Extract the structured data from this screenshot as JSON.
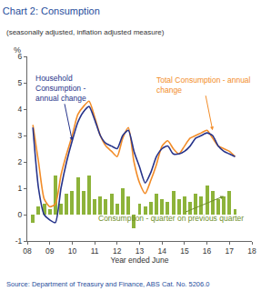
{
  "chart_data": {
    "type": "bar",
    "title": "Chart 2: Consumption",
    "subtitle": "(seasonally adjusted, inflation adjusted measure)",
    "y_label": "%",
    "x_label": "Year ended June",
    "source": "Source: Department of Treasury and Finance, ABS Cat. No. 5206.0",
    "x": [
      2008.25,
      2008.5,
      2008.75,
      2009.0,
      2009.25,
      2009.5,
      2009.75,
      2010.0,
      2010.25,
      2010.5,
      2010.75,
      2011.0,
      2011.25,
      2011.5,
      2011.75,
      2012.0,
      2012.25,
      2012.5,
      2012.75,
      2013.0,
      2013.25,
      2013.5,
      2013.75,
      2014.0,
      2014.25,
      2014.5,
      2014.75,
      2015.0,
      2015.25,
      2015.5,
      2015.75,
      2016.0,
      2016.25,
      2016.5,
      2016.75,
      2017.0,
      2017.25
    ],
    "series": [
      {
        "name": "Consumption - quarter on previous quarter",
        "type": "bar",
        "color": "#8db33a",
        "values": [
          -0.3,
          0.3,
          0.4,
          0.2,
          1.5,
          0.4,
          0.8,
          0.9,
          1.4,
          0.9,
          1.5,
          0.6,
          0.7,
          0.6,
          0.8,
          0.4,
          1.0,
          0.7,
          -0.5,
          0.4,
          0.3,
          0.5,
          0.8,
          0.6,
          0.5,
          0.9,
          0.6,
          0.7,
          0.5,
          0.8,
          0.7,
          1.1,
          0.9,
          0.6,
          0.7,
          0.9,
          0.2
        ]
      },
      {
        "name": "Total Consumption - annual change",
        "type": "line",
        "color": "#f28c28",
        "values": [
          3.4,
          2.0,
          0.6,
          0.3,
          0.4,
          1.5,
          2.3,
          3.0,
          3.8,
          4.1,
          4.3,
          3.7,
          3.0,
          2.6,
          2.4,
          2.2,
          2.9,
          3.3,
          2.0,
          1.2,
          0.8,
          1.3,
          1.9,
          2.6,
          2.8,
          2.5,
          2.3,
          2.6,
          2.9,
          3.0,
          3.1,
          3.2,
          2.9,
          2.6,
          2.5,
          2.4,
          2.2
        ]
      },
      {
        "name": "Household Consumption - annual change",
        "type": "line",
        "color": "#27348b",
        "values": [
          3.3,
          1.0,
          0.0,
          -0.2,
          -0.3,
          1.0,
          2.0,
          2.8,
          3.5,
          3.9,
          4.1,
          3.6,
          3.0,
          2.7,
          2.6,
          2.5,
          3.0,
          3.2,
          2.4,
          1.8,
          1.2,
          1.6,
          2.2,
          2.5,
          2.6,
          2.3,
          2.3,
          2.4,
          2.6,
          2.9,
          3.0,
          3.1,
          3.0,
          2.6,
          2.4,
          2.3,
          2.2
        ]
      }
    ],
    "annotations": [
      {
        "text": "Household\nConsumption -\nannual change",
        "x": 2010.0,
        "y": 2.8,
        "color": "#27348b"
      },
      {
        "text": "Total Consumption - annual\nchange",
        "x": 2016.25,
        "y": 3.2,
        "color": "#f28c28"
      },
      {
        "text": "Consumption - quarter on previous quarter",
        "x": 2016.75,
        "y": 0.7,
        "color": "#6f8f2a"
      }
    ],
    "xlim": [
      2008,
      2018
    ],
    "xticks": [
      {
        "value": 2008,
        "label": "08"
      },
      {
        "value": 2009,
        "label": "09"
      },
      {
        "value": 2010,
        "label": "10"
      },
      {
        "value": 2011,
        "label": "11"
      },
      {
        "value": 2012,
        "label": "12"
      },
      {
        "value": 2013,
        "label": "13"
      },
      {
        "value": 2014,
        "label": "14"
      },
      {
        "value": 2015,
        "label": "15"
      },
      {
        "value": 2016,
        "label": "16"
      },
      {
        "value": 2017,
        "label": "17"
      },
      {
        "value": 2018,
        "label": "18"
      }
    ],
    "ylim": [
      -1,
      6
    ],
    "yticks": [
      -1,
      0,
      1,
      2,
      3,
      4,
      5,
      6
    ],
    "grid": false,
    "title_color": "#1f4e9c"
  }
}
